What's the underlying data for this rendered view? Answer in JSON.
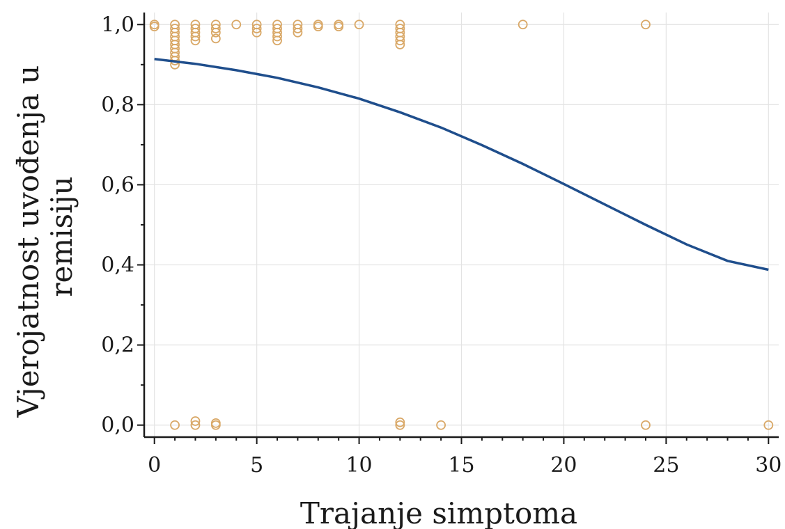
{
  "chart_data": {
    "type": "scatter",
    "title": "",
    "xlabel": "Trajanje simptoma",
    "ylabel_lines": [
      "Vjerojatnost uvođenja u",
      "remisiju"
    ],
    "xlim": [
      -0.5,
      30.5
    ],
    "ylim": [
      -0.03,
      1.03
    ],
    "x_ticks": [
      0,
      5,
      10,
      15,
      20,
      25,
      30
    ],
    "x_tick_labels": [
      "0",
      "5",
      "10",
      "15",
      "20",
      "25",
      "30"
    ],
    "y_ticks": [
      0.0,
      0.2,
      0.4,
      0.6,
      0.8,
      1.0
    ],
    "y_tick_labels": [
      "0,0",
      "0,2",
      "0,4",
      "0,6",
      "0,8",
      "1,0"
    ],
    "grid": true,
    "colors": {
      "points": "#d9a867",
      "curve": "#1f4e8c"
    },
    "series": [
      {
        "type": "scatter",
        "points": [
          [
            0,
            1.0
          ],
          [
            0,
            0.995
          ],
          [
            1,
            1.0
          ],
          [
            1,
            0.99
          ],
          [
            1,
            0.98
          ],
          [
            1,
            0.97
          ],
          [
            1,
            0.96
          ],
          [
            1,
            0.95
          ],
          [
            1,
            0.94
          ],
          [
            1,
            0.93
          ],
          [
            1,
            0.92
          ],
          [
            1,
            0.91
          ],
          [
            1,
            0.9
          ],
          [
            1,
            0.0
          ],
          [
            2,
            1.0
          ],
          [
            2,
            0.99
          ],
          [
            2,
            0.98
          ],
          [
            2,
            0.97
          ],
          [
            2,
            0.96
          ],
          [
            2,
            0.0
          ],
          [
            2,
            0.01
          ],
          [
            3,
            1.0
          ],
          [
            3,
            0.99
          ],
          [
            3,
            0.98
          ],
          [
            3,
            0.965
          ],
          [
            3,
            0.0
          ],
          [
            3,
            0.005
          ],
          [
            4,
            1.0
          ],
          [
            5,
            1.0
          ],
          [
            5,
            0.99
          ],
          [
            5,
            0.98
          ],
          [
            6,
            1.0
          ],
          [
            6,
            0.99
          ],
          [
            6,
            0.98
          ],
          [
            6,
            0.97
          ],
          [
            6,
            0.96
          ],
          [
            7,
            1.0
          ],
          [
            7,
            0.99
          ],
          [
            7,
            0.98
          ],
          [
            8,
            1.0
          ],
          [
            8,
            0.995
          ],
          [
            9,
            1.0
          ],
          [
            9,
            0.995
          ],
          [
            10,
            1.0
          ],
          [
            12,
            1.0
          ],
          [
            12,
            0.99
          ],
          [
            12,
            0.98
          ],
          [
            12,
            0.97
          ],
          [
            12,
            0.96
          ],
          [
            12,
            0.95
          ],
          [
            12,
            0.0
          ],
          [
            12,
            0.007
          ],
          [
            14,
            0.0
          ],
          [
            18,
            1.0
          ],
          [
            24,
            1.0
          ],
          [
            24,
            0.0
          ],
          [
            30,
            0.0
          ]
        ]
      },
      {
        "type": "line",
        "x": [
          0,
          2,
          4,
          6,
          8,
          10,
          12,
          14,
          16,
          18,
          20,
          22,
          24,
          26,
          28,
          30
        ],
        "y": [
          0.914,
          0.902,
          0.886,
          0.867,
          0.843,
          0.815,
          0.781,
          0.743,
          0.699,
          0.652,
          0.602,
          0.551,
          0.5,
          0.451,
          0.41,
          0.388
        ]
      }
    ]
  }
}
